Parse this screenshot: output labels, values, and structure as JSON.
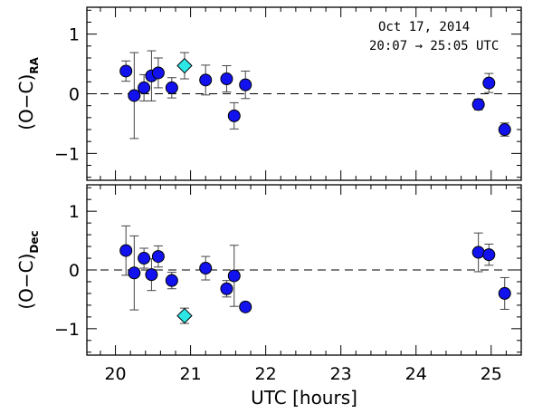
{
  "chart_data": {
    "type": "scatter",
    "annotation": {
      "date": "Oct 17, 2014",
      "range": "20:07 → 25:05 UTC"
    },
    "x_axis": {
      "label": "UTC [hours]",
      "range": [
        19.62,
        25.4
      ],
      "ticks": [
        20,
        21,
        22,
        23,
        24,
        25
      ],
      "tick_labels": [
        "20",
        "21",
        "22",
        "23",
        "24",
        "25"
      ]
    },
    "panels": [
      {
        "id": "ra",
        "ylabel_main": "(O−C)",
        "ylabel_sub": "RA",
        "ylim": [
          -1.45,
          1.45
        ],
        "yticks": [
          -1,
          0,
          1
        ],
        "ytick_labels": [
          "−1",
          "0",
          "1"
        ],
        "reference_line": 0,
        "series": [
          {
            "marker": "circle",
            "color": "#1212ee",
            "points": [
              {
                "x": 20.14,
                "y": 0.38,
                "err": 0.17
              },
              {
                "x": 20.25,
                "y": -0.03,
                "err": 0.72
              },
              {
                "x": 20.38,
                "y": 0.1,
                "err": 0.22
              },
              {
                "x": 20.48,
                "y": 0.3,
                "err": 0.42
              },
              {
                "x": 20.57,
                "y": 0.35,
                "err": 0.25
              },
              {
                "x": 20.75,
                "y": 0.1,
                "err": 0.17
              },
              {
                "x": 21.2,
                "y": 0.23,
                "err": 0.25
              },
              {
                "x": 21.48,
                "y": 0.25,
                "err": 0.22
              },
              {
                "x": 21.58,
                "y": -0.37,
                "err": 0.22
              },
              {
                "x": 21.73,
                "y": 0.15,
                "err": 0.23
              },
              {
                "x": 24.83,
                "y": -0.18,
                "err": 0.09
              },
              {
                "x": 24.97,
                "y": 0.18,
                "err": 0.16
              },
              {
                "x": 25.18,
                "y": -0.6,
                "err": 0.11
              }
            ]
          },
          {
            "marker": "diamond",
            "color": "#2de6e6",
            "points": [
              {
                "x": 20.92,
                "y": 0.47,
                "err": 0.22
              }
            ]
          }
        ]
      },
      {
        "id": "dec",
        "ylabel_main": "(O−C)",
        "ylabel_sub": "Dec",
        "ylim": [
          -1.45,
          1.45
        ],
        "yticks": [
          -1,
          0,
          1
        ],
        "ytick_labels": [
          "−1",
          "0",
          "1"
        ],
        "reference_line": 0,
        "series": [
          {
            "marker": "circle",
            "color": "#1212ee",
            "points": [
              {
                "x": 20.14,
                "y": 0.33,
                "err": 0.42
              },
              {
                "x": 20.25,
                "y": -0.05,
                "err": 0.63
              },
              {
                "x": 20.38,
                "y": 0.2,
                "err": 0.17
              },
              {
                "x": 20.48,
                "y": -0.08,
                "err": 0.27
              },
              {
                "x": 20.57,
                "y": 0.23,
                "err": 0.18
              },
              {
                "x": 20.75,
                "y": -0.18,
                "err": 0.14
              },
              {
                "x": 21.2,
                "y": 0.03,
                "err": 0.2
              },
              {
                "x": 21.48,
                "y": -0.32,
                "err": 0.14
              },
              {
                "x": 21.58,
                "y": -0.1,
                "err": 0.52
              },
              {
                "x": 21.73,
                "y": -0.63,
                "err": 0.07
              },
              {
                "x": 24.83,
                "y": 0.3,
                "err": 0.33
              },
              {
                "x": 24.97,
                "y": 0.26,
                "err": 0.18
              },
              {
                "x": 25.18,
                "y": -0.4,
                "err": 0.27
              }
            ]
          },
          {
            "marker": "diamond",
            "color": "#2de6e6",
            "points": [
              {
                "x": 20.92,
                "y": -0.78,
                "err": 0.13
              }
            ]
          }
        ]
      }
    ]
  }
}
